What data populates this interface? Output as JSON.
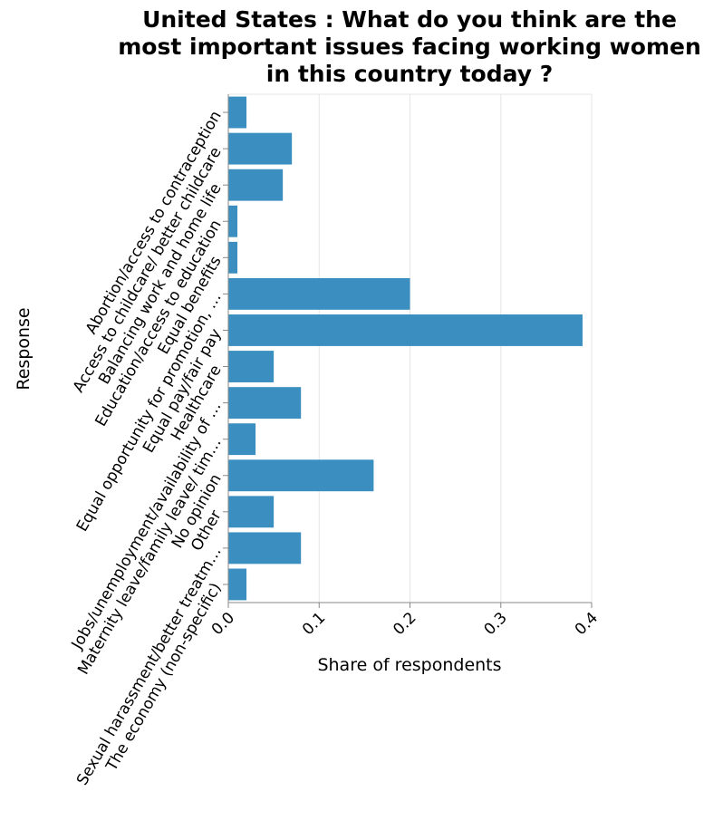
{
  "chart_data": {
    "type": "bar",
    "orientation": "horizontal",
    "title_lines": [
      "United States : What do you think are the",
      "most important issues facing working women",
      "in this country today ?"
    ],
    "xlabel": "Share of respondents",
    "ylabel": "Response",
    "xlim": [
      0,
      0.4
    ],
    "x_ticks": [
      "0.0",
      "0.1",
      "0.2",
      "0.3",
      "0.4"
    ],
    "grid": true,
    "bar_color": "#3a8fc0",
    "categories": [
      "Abortion/access to contraception",
      "Access to childcare/ better childcare",
      "Balancing work and home life",
      "Education/access to education",
      "Equal benefits",
      "Equal opportunity for promotion, …",
      "Equal pay/fair pay",
      "Healthcare",
      "Jobs/unemployment/availability of …",
      "Maternity leave/family leave/ tim…",
      "No opinion",
      "Other",
      "Sexual harassment/better treatm…",
      "The economy (non-specific)"
    ],
    "values": [
      0.02,
      0.07,
      0.06,
      0.01,
      0.01,
      0.2,
      0.39,
      0.05,
      0.08,
      0.03,
      0.16,
      0.05,
      0.08,
      0.02
    ]
  }
}
